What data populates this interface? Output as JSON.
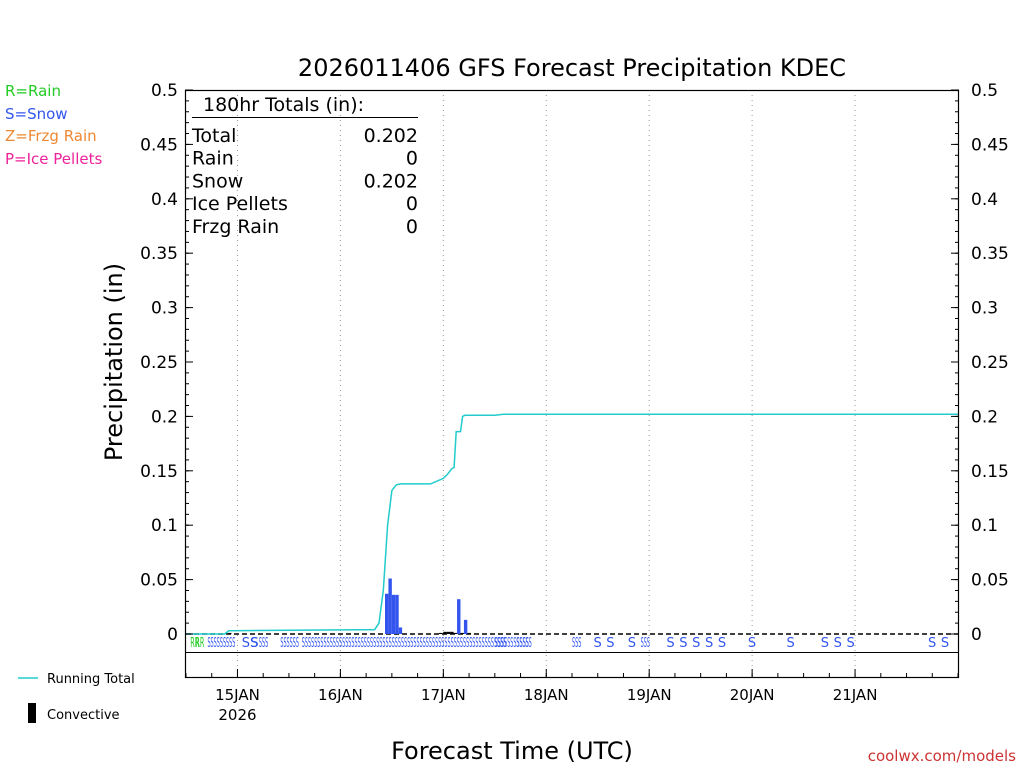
{
  "legend": {
    "rain": "R=Rain",
    "snow": "S=Snow",
    "frzg_rain": "Z=Frzg Rain",
    "ice_pellets": "P=Ice Pellets",
    "running_total": "Running Total",
    "convective": "Convective"
  },
  "totals_box": {
    "heading": "180hr Totals (in):",
    "rows": [
      {
        "label": "Total",
        "value": "0.202"
      },
      {
        "label": "Rain",
        "value": "0"
      },
      {
        "label": "Snow",
        "value": "0.202"
      },
      {
        "label": "Ice Pellets",
        "value": "0"
      },
      {
        "label": "Frzg Rain",
        "value": "0"
      }
    ]
  },
  "credit": "coolwx.com/models",
  "colors": {
    "rain": "#22cc22",
    "snow": "#3355ee",
    "frzg_rain": "#ee8833",
    "ice_pellets": "#ee2299",
    "running_total": "#22cccc",
    "convective": "#000000"
  },
  "chart_data": {
    "type": "bar",
    "title": "2026011406 GFS Forecast Precipitation KDEC",
    "xlabel": "Forecast Time (UTC)",
    "ylabel": "Precipitation (in)",
    "ylim": [
      0,
      0.5
    ],
    "yticks": [
      "0",
      "0.05",
      "0.1",
      "0.15",
      "0.2",
      "0.25",
      "0.3",
      "0.35",
      "0.4",
      "0.45",
      "0.5"
    ],
    "xlim_hours": [
      6,
      186
    ],
    "xticks": [
      {
        "hour": 18,
        "label": "15JAN",
        "sub": "2026"
      },
      {
        "hour": 42,
        "label": "16JAN",
        "sub": ""
      },
      {
        "hour": 66,
        "label": "17JAN",
        "sub": ""
      },
      {
        "hour": 90,
        "label": "18JAN",
        "sub": ""
      },
      {
        "hour": 114,
        "label": "19JAN",
        "sub": ""
      },
      {
        "hour": 138,
        "label": "20JAN",
        "sub": ""
      },
      {
        "hour": 162,
        "label": "21JAN",
        "sub": ""
      }
    ],
    "grid": true,
    "series": [
      {
        "name": "Running Total",
        "type": "line",
        "points": [
          [
            6,
            0
          ],
          [
            15,
            0
          ],
          [
            16,
            0.003
          ],
          [
            50,
            0.004
          ],
          [
            51,
            0.01
          ],
          [
            52,
            0.04
          ],
          [
            53,
            0.1
          ],
          [
            54,
            0.132
          ],
          [
            55,
            0.137
          ],
          [
            56,
            0.138
          ],
          [
            63,
            0.138
          ],
          [
            66,
            0.143
          ],
          [
            67,
            0.147
          ],
          [
            68,
            0.152
          ],
          [
            68.5,
            0.153
          ],
          [
            69,
            0.186
          ],
          [
            70,
            0.186
          ],
          [
            70.5,
            0.2
          ],
          [
            71,
            0.201
          ],
          [
            78,
            0.201
          ],
          [
            80,
            0.202
          ],
          [
            186,
            0.202
          ]
        ]
      },
      {
        "name": "Snow",
        "type": "bar",
        "bars": [
          [
            52.4,
            0.037
          ],
          [
            53.2,
            0.051
          ],
          [
            54,
            0.036
          ],
          [
            54.8,
            0.036
          ],
          [
            55.6,
            0.006
          ],
          [
            69.2,
            0.032
          ],
          [
            70.8,
            0.013
          ]
        ]
      },
      {
        "name": "Convective",
        "type": "bar",
        "bars": [
          [
            15.8,
            0.001
          ],
          [
            65,
            0.001
          ],
          [
            66,
            0.002
          ],
          [
            66.8,
            0.002
          ],
          [
            67.6,
            0.002
          ],
          [
            68.4,
            0.001
          ],
          [
            70,
            0.001
          ],
          [
            71.6,
            0.001
          ]
        ]
      }
    ],
    "ptype_markers": {
      "rain": [
        {
          "hour": 7,
          "text": "RR"
        },
        {
          "hour": 8.2,
          "text": "RR"
        }
      ],
      "snow": [
        {
          "hour": 11,
          "text": "SSSSSSSSS"
        },
        {
          "hour": 19,
          "text": "SS"
        },
        {
          "hour": 21,
          "text": "S"
        },
        {
          "hour": 23,
          "text": "SSS"
        },
        {
          "hour": 28,
          "text": "SSSSSS"
        },
        {
          "hour": 33,
          "text": "SSSSSSSSSSSSSSSSSSSSSSSSSSSSSSSSSSSSSSSSSSSSSSSSSSSSSSSSSSSSSSSSSS"
        },
        {
          "hour": 78,
          "text": "SSSSSSSSSSS"
        },
        {
          "hour": 83,
          "text": "SSSSS"
        },
        {
          "hour": 96,
          "text": "SSS"
        },
        {
          "hour": 101,
          "text": "S"
        },
        {
          "hour": 104,
          "text": "S"
        },
        {
          "hour": 109,
          "text": "S"
        },
        {
          "hour": 112,
          "text": "SSS"
        },
        {
          "hour": 118,
          "text": "S"
        },
        {
          "hour": 121,
          "text": "S"
        },
        {
          "hour": 124,
          "text": "S"
        },
        {
          "hour": 127,
          "text": "S"
        },
        {
          "hour": 130,
          "text": "S"
        },
        {
          "hour": 137,
          "text": "S"
        },
        {
          "hour": 146,
          "text": "S"
        },
        {
          "hour": 154,
          "text": "S"
        },
        {
          "hour": 157,
          "text": "S"
        },
        {
          "hour": 160,
          "text": "S"
        },
        {
          "hour": 179,
          "text": "S"
        },
        {
          "hour": 182,
          "text": "S"
        }
      ]
    }
  }
}
